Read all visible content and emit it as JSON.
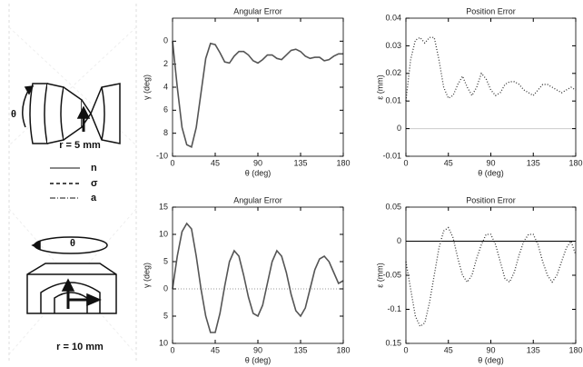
{
  "chart_data": [
    {
      "type": "line",
      "title": "Angular Error",
      "xlabel": "θ (deg)",
      "ylabel": "γ (deg)",
      "x": [
        0,
        5,
        10,
        15,
        20,
        25,
        30,
        35,
        40,
        45,
        50,
        55,
        60,
        65,
        70,
        75,
        80,
        85,
        90,
        95,
        100,
        105,
        110,
        115,
        120,
        125,
        130,
        135,
        140,
        145,
        150,
        155,
        160,
        165,
        170,
        175,
        180
      ],
      "values": [
        0,
        -4,
        -7.5,
        -9,
        -9.2,
        -7.5,
        -4.5,
        -1.5,
        -0.2,
        -0.3,
        -1,
        -1.8,
        -1.9,
        -1.3,
        -0.9,
        -0.9,
        -1.2,
        -1.7,
        -1.9,
        -1.6,
        -1.2,
        -1.2,
        -1.5,
        -1.6,
        -1.2,
        -0.8,
        -0.7,
        -0.9,
        -1.3,
        -1.5,
        -1.4,
        -1.4,
        -1.7,
        -1.6,
        -1.3,
        -1.1,
        -1.1
      ],
      "color": "#555555",
      "line_style": "solid",
      "xlim": [
        0,
        180
      ],
      "xticks": [
        0,
        45,
        90,
        135,
        180
      ],
      "ylim": [
        -10,
        2
      ],
      "yticks": [
        0,
        {
          "value": -2,
          "label": "2"
        },
        {
          "value": -4,
          "label": "4"
        },
        {
          "value": -6,
          "label": "6"
        },
        {
          "value": -8,
          "label": "8"
        },
        -10
      ]
    },
    {
      "type": "line",
      "title": "Position Error",
      "xlabel": "θ (deg)",
      "ylabel": "ε (mm)",
      "x": [
        0,
        5,
        10,
        15,
        20,
        25,
        30,
        35,
        40,
        45,
        50,
        55,
        60,
        65,
        70,
        75,
        80,
        85,
        90,
        95,
        100,
        105,
        110,
        115,
        120,
        125,
        130,
        135,
        140,
        145,
        150,
        155,
        160,
        165,
        170,
        175,
        180
      ],
      "values": [
        0.01,
        0.025,
        0.032,
        0.033,
        0.031,
        0.033,
        0.033,
        0.025,
        0.015,
        0.011,
        0.012,
        0.016,
        0.019,
        0.015,
        0.012,
        0.015,
        0.02,
        0.018,
        0.014,
        0.012,
        0.013,
        0.016,
        0.017,
        0.017,
        0.016,
        0.014,
        0.013,
        0.012,
        0.014,
        0.016,
        0.016,
        0.015,
        0.014,
        0.013,
        0.014,
        0.015,
        0.014
      ],
      "color": "#333333",
      "line_style": "dotted",
      "reference_line": {
        "value": 0,
        "style": "solid",
        "color": "#cccccc"
      },
      "xlim": [
        0,
        180
      ],
      "xticks": [
        0,
        45,
        90,
        135,
        180
      ],
      "ylim": [
        -0.01,
        0.04
      ],
      "yticks": [
        0.04,
        0.03,
        0.02,
        0.01,
        0,
        -0.01
      ]
    },
    {
      "type": "line",
      "title": "Angular Error",
      "xlabel": "θ (deg)",
      "ylabel": "γ (deg)",
      "x": [
        0,
        5,
        10,
        15,
        20,
        25,
        30,
        35,
        40,
        45,
        50,
        55,
        60,
        65,
        70,
        75,
        80,
        85,
        90,
        95,
        100,
        105,
        110,
        115,
        120,
        125,
        130,
        135,
        140,
        145,
        150,
        155,
        160,
        165,
        170,
        175,
        180
      ],
      "values": [
        0,
        6,
        10.5,
        12,
        11,
        6,
        0,
        -5,
        -8,
        -8,
        -4.5,
        0.5,
        5,
        7,
        6,
        2.5,
        -1.5,
        -4.5,
        -5,
        -3,
        1,
        5,
        7,
        6,
        3,
        -1,
        -4,
        -5,
        -3.5,
        0,
        3.5,
        5.5,
        6,
        5,
        3,
        1,
        1.5
      ],
      "color": "#555555",
      "line_style": "solid",
      "reference_line": {
        "value": 0,
        "style": "dotted",
        "color": "#999999"
      },
      "xlim": [
        0,
        180
      ],
      "xticks": [
        0,
        45,
        90,
        135,
        180
      ],
      "ylim": [
        -10,
        15
      ],
      "yticks": [
        15,
        10,
        5,
        0,
        {
          "value": -5,
          "label": "5"
        },
        {
          "value": -10,
          "label": "10"
        }
      ]
    },
    {
      "type": "line",
      "title": "Position Error",
      "xlabel": "θ (deg)",
      "ylabel": "ε (mm)",
      "x": [
        0,
        5,
        10,
        15,
        20,
        25,
        30,
        35,
        40,
        45,
        50,
        55,
        60,
        65,
        70,
        75,
        80,
        85,
        90,
        95,
        100,
        105,
        110,
        115,
        120,
        125,
        130,
        135,
        140,
        145,
        150,
        155,
        160,
        165,
        170,
        175,
        180
      ],
      "values": [
        -0.03,
        -0.07,
        -0.11,
        -0.125,
        -0.12,
        -0.09,
        -0.05,
        -0.01,
        0.015,
        0.02,
        0.005,
        -0.025,
        -0.05,
        -0.06,
        -0.05,
        -0.025,
        -0.005,
        0.01,
        0.01,
        -0.005,
        -0.03,
        -0.055,
        -0.06,
        -0.045,
        -0.02,
        0,
        0.01,
        0.01,
        -0.005,
        -0.03,
        -0.05,
        -0.06,
        -0.05,
        -0.03,
        -0.01,
        0,
        -0.02
      ],
      "color": "#333333",
      "line_style": "dotted",
      "reference_line": {
        "value": 0,
        "style": "solid",
        "color": "#000000"
      },
      "xlim": [
        0,
        180
      ],
      "xticks": [
        0,
        45,
        90,
        135,
        180
      ],
      "ylim": [
        -0.15,
        0.05
      ],
      "yticks": [
        0.05,
        0,
        -0.05,
        -0.1,
        {
          "value": -0.15,
          "label": "0.15"
        }
      ]
    }
  ],
  "diagram": {
    "top": {
      "angle": "θ",
      "radius": "r = 5 mm"
    },
    "legend": [
      "n",
      "σ",
      "a"
    ],
    "bottom": {
      "angle": "θ",
      "radius": "r = 10 mm"
    }
  }
}
